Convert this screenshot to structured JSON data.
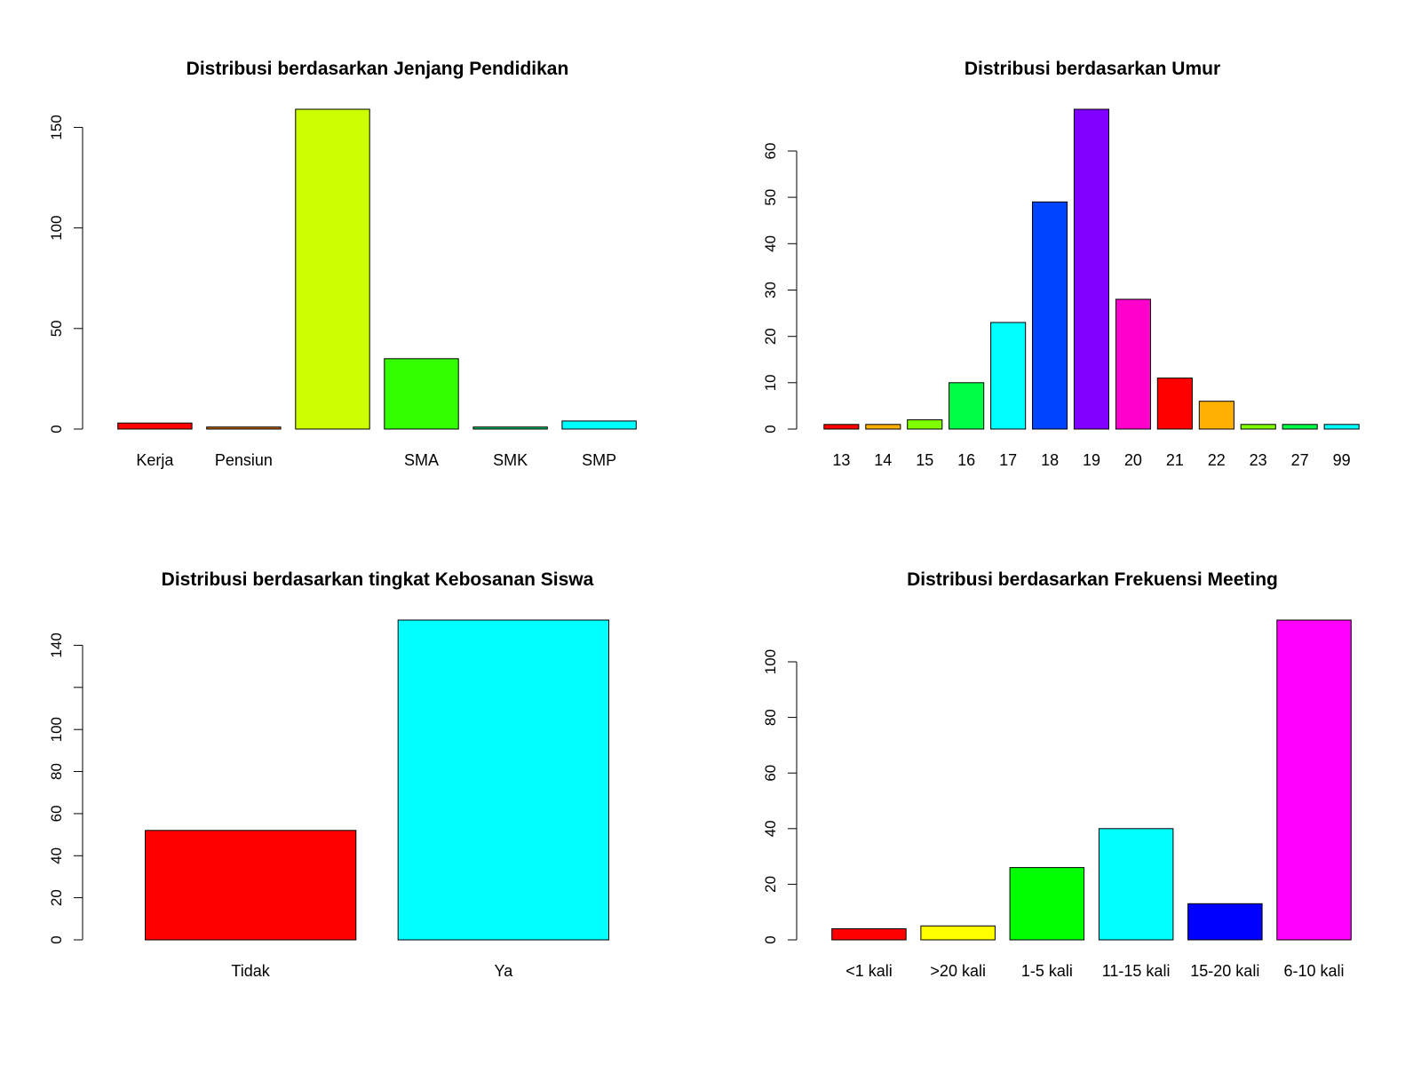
{
  "chart_data": [
    {
      "type": "bar",
      "title": "Distribusi berdasarkan Jenjang Pendidikan",
      "xlabel": "",
      "ylabel": "",
      "categories": [
        "Kerja",
        "Pensiun",
        "",
        "SMA",
        "SMK",
        "SMP"
      ],
      "values": [
        3,
        1,
        159,
        35,
        1,
        4
      ],
      "colors": [
        "#FF0000",
        "#CC6600",
        "#CCFF00",
        "#33FF00",
        "#00CC66",
        "#00FFFF"
      ],
      "ylim": [
        0,
        159
      ],
      "yticks": [
        0,
        50,
        100,
        150
      ],
      "yticklabels": [
        "0",
        "50",
        "100",
        "150"
      ],
      "grid": false,
      "legend": "none"
    },
    {
      "type": "bar",
      "title": "Distribusi berdasarkan Umur",
      "xlabel": "",
      "ylabel": "",
      "categories": [
        "13",
        "14",
        "15",
        "16",
        "17",
        "18",
        "19",
        "20",
        "21",
        "22",
        "23",
        "27",
        "99"
      ],
      "values": [
        1,
        1,
        2,
        10,
        23,
        49,
        69,
        28,
        11,
        6,
        1,
        1,
        1
      ],
      "colors": [
        "#FF0000",
        "#FFB000",
        "#80FF00",
        "#00FF44",
        "#00FFFF",
        "#0044FF",
        "#8000FF",
        "#FF00CC",
        "#FF0000",
        "#FFB000",
        "#80FF00",
        "#00FF44",
        "#00FFFF"
      ],
      "ylim": [
        0,
        69
      ],
      "yticks": [
        0,
        10,
        20,
        30,
        40,
        50,
        60
      ],
      "yticklabels": [
        "0",
        "10",
        "20",
        "30",
        "40",
        "50",
        "60"
      ],
      "grid": false,
      "legend": "none"
    },
    {
      "type": "bar",
      "title": "Distribusi berdasarkan tingkat Kebosanan Siswa",
      "xlabel": "",
      "ylabel": "",
      "categories": [
        "Tidak",
        "Ya"
      ],
      "values": [
        52,
        152
      ],
      "colors": [
        "#FF0000",
        "#00FFFF"
      ],
      "ylim": [
        0,
        152
      ],
      "yticks": [
        0,
        20,
        40,
        60,
        80,
        100,
        120,
        140
      ],
      "yticklabels": [
        "0",
        "20",
        "40",
        "60",
        "80",
        "100",
        "",
        "140"
      ],
      "grid": false,
      "legend": "none"
    },
    {
      "type": "bar",
      "title": "Distribusi berdasarkan Frekuensi Meeting",
      "xlabel": "",
      "ylabel": "",
      "categories": [
        "<1 kali",
        ">20 kali",
        "1-5 kali",
        "11-15 kali",
        "15-20 kali",
        "6-10 kali"
      ],
      "values": [
        4,
        5,
        26,
        40,
        13,
        115
      ],
      "colors": [
        "#FF0000",
        "#FFFF00",
        "#00FF00",
        "#00FFFF",
        "#0000FF",
        "#FF00FF"
      ],
      "ylim": [
        0,
        115
      ],
      "yticks": [
        0,
        20,
        40,
        60,
        80,
        100
      ],
      "yticklabels": [
        "0",
        "20",
        "40",
        "60",
        "80",
        "100"
      ],
      "grid": false,
      "legend": "none"
    }
  ]
}
